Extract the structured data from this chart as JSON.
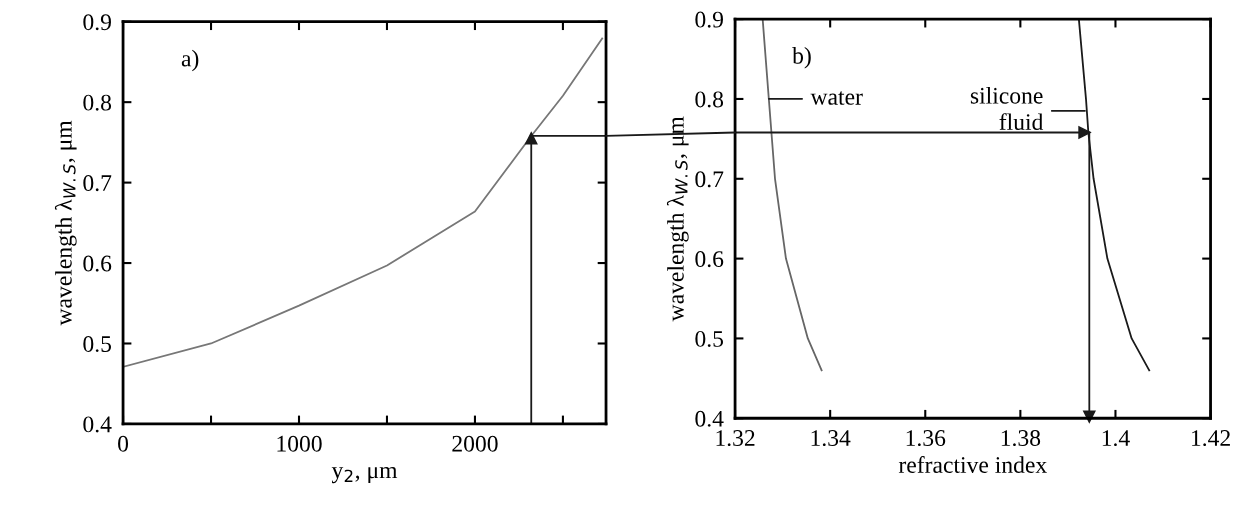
{
  "chart_data": [
    {
      "type": "line",
      "xlabel": "y$_{2}$, μm",
      "ylabel": "wavelength λ$_{W.S}$, μm",
      "annotations": [
        "a)"
      ],
      "xlim": [
        0,
        2745
      ],
      "ylim": [
        0.4,
        0.9
      ],
      "xticks": [
        0,
        {
          "value": 500,
          "label": null
        },
        1000,
        {
          "value": 1500,
          "label": null
        },
        2000,
        {
          "value": 2500,
          "label": null
        }
      ],
      "yticks": [
        0.4,
        0.5,
        0.6,
        0.7,
        0.8,
        0.9
      ],
      "grid": false,
      "legend": false,
      "marker": "none",
      "line_style": "solid",
      "series": [
        {
          "color": "#777777",
          "x": [
            0,
            500,
            1000,
            1500,
            2000,
            2320,
            2500,
            2723
          ],
          "values": [
            0.471,
            0.5,
            0.547,
            0.597,
            0.664,
            0.758,
            0.808,
            0.879
          ]
        },
        {
          "color": "#1a1a1a",
          "marker": "triangle",
          "x": [
            2320,
            2320
          ],
          "values": [
            0.4,
            0.755
          ]
        },
        {
          "color": "#1a1a1a",
          "x": [
            2320,
            2745
          ],
          "values": [
            0.758,
            0.758
          ]
        }
      ]
    },
    {
      "type": "line",
      "xlabel": "refractive index",
      "ylabel": "wavelength λ$_{W.S}$, μm",
      "annotations": [
        "b)",
        {
          "text": "water",
          "x": 1.3271,
          "y": 0.8
        },
        {
          "text": "silicone\nfluid",
          "x": 1.3936,
          "y": 0.785
        }
      ],
      "xlim": [
        1.32,
        1.42
      ],
      "ylim": [
        0.4,
        0.9
      ],
      "xticks": [
        1.32,
        1.34,
        1.36,
        1.38,
        {
          "value": 1.4,
          "label": "1.4"
        },
        1.42
      ],
      "yticks": [
        0.4,
        0.5,
        0.6,
        0.7,
        0.8,
        0.9
      ],
      "grid": false,
      "legend": false,
      "marker": "none",
      "line_style": "solid",
      "series": [
        {
          "color": "#666666",
          "x": [
            1.3258,
            1.3271,
            1.3284,
            1.3307,
            1.3353,
            1.3382
          ],
          "values": [
            0.9,
            0.8,
            0.7,
            0.6,
            0.5,
            0.46
          ]
        },
        {
          "color": "#1a1a1a",
          "x": [
            1.3923,
            1.3938,
            1.3943,
            1.3954,
            1.3983,
            1.4034,
            1.4071
          ],
          "values": [
            0.9,
            0.8,
            0.758,
            0.7,
            0.6,
            0.5,
            0.46
          ]
        },
        {
          "color": "#1a1a1a",
          "marker": "triangle",
          "x": [
            1.32,
            1.3935
          ],
          "values": [
            0.758,
            0.758
          ]
        },
        {
          "color": "#1a1a1a",
          "marker": "triangle",
          "x": [
            1.3945,
            1.3945
          ],
          "values": [
            0.758,
            0.402
          ]
        }
      ]
    }
  ]
}
